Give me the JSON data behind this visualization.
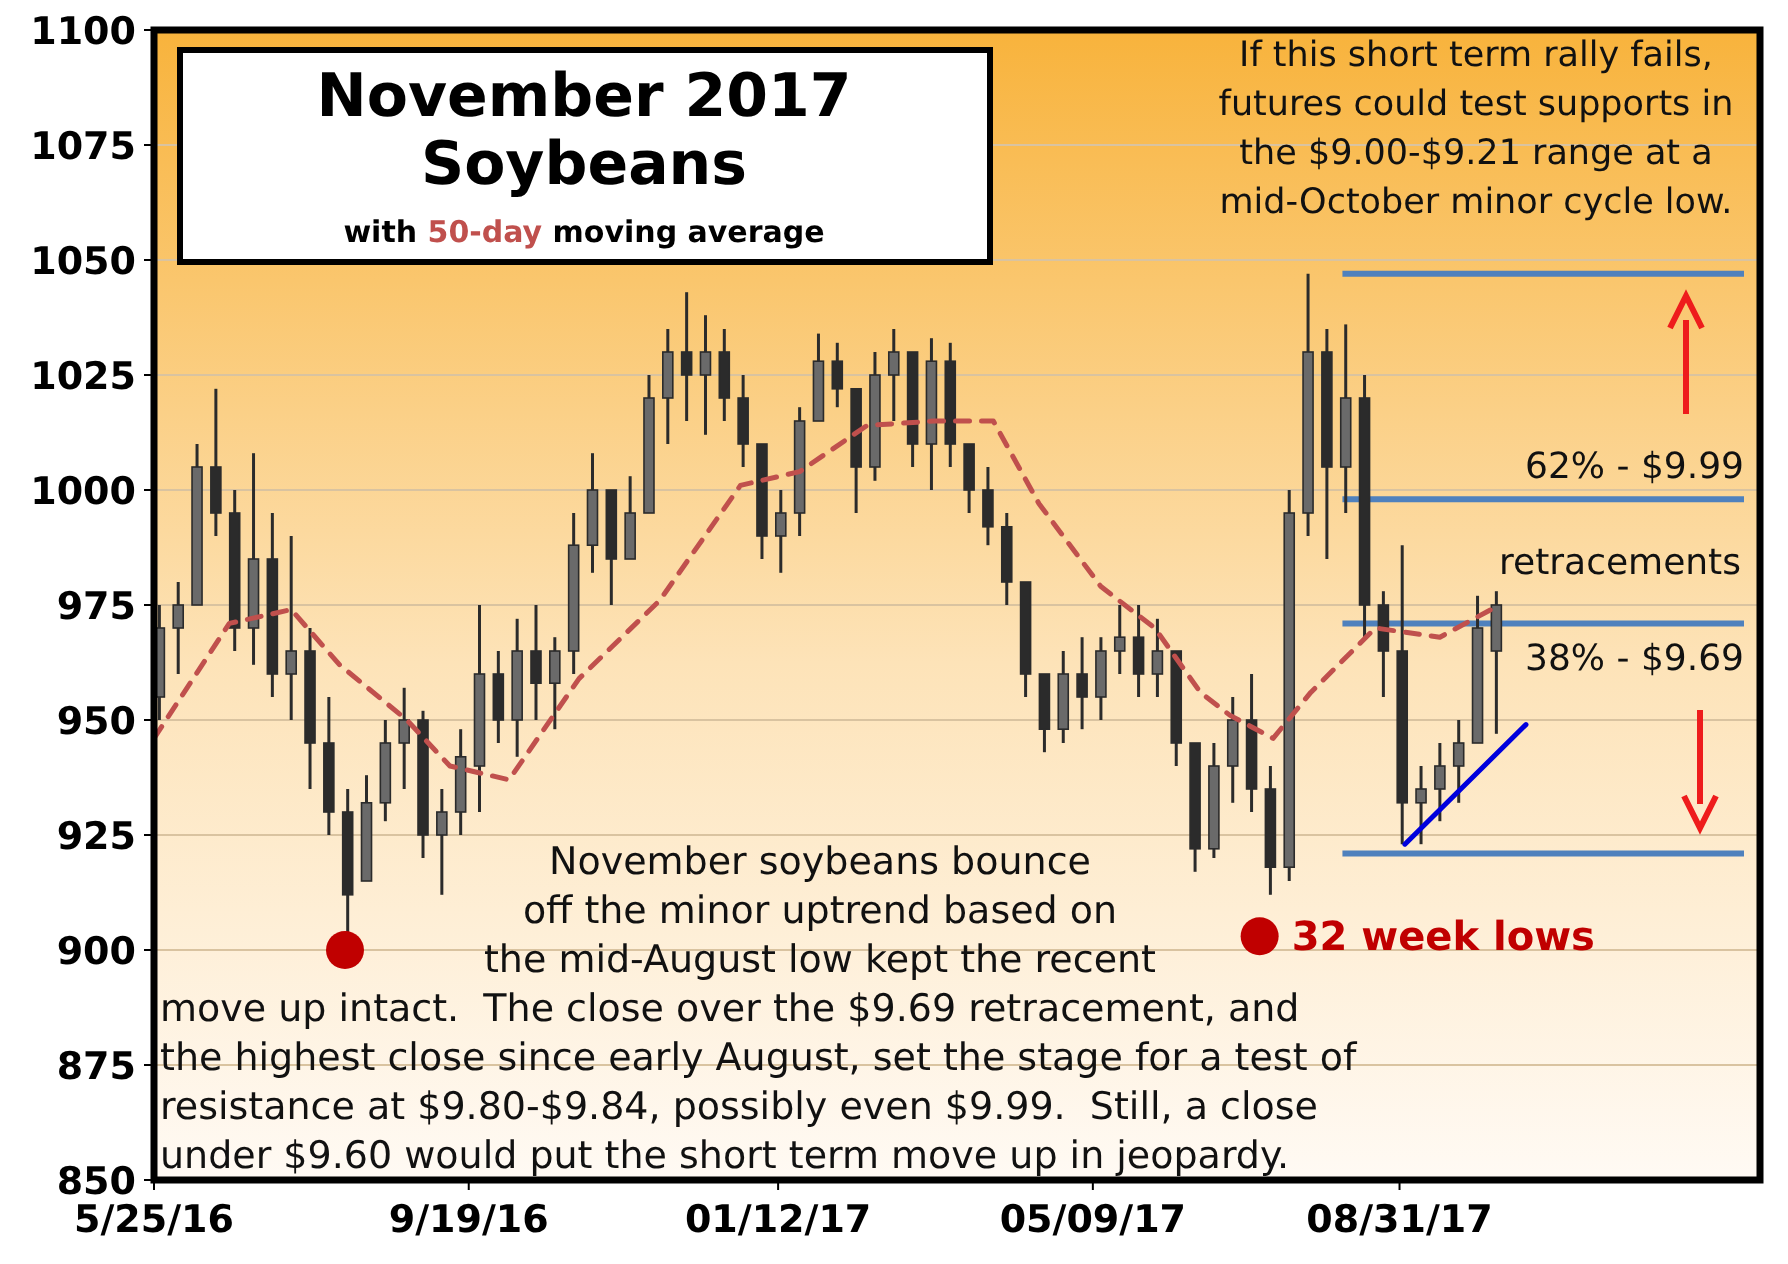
{
  "chart_data": {
    "type": "candlestick",
    "title": "November 2017 Soybeans",
    "subtitle": "with 50-day moving average",
    "xlim": [
      "2016-05-25",
      "2018-01-12"
    ],
    "xticks": [
      {
        "value": "2016-05-25",
        "label": "5/25/16"
      },
      {
        "value": "2016-09-19",
        "label": "9/19/16"
      },
      {
        "value": "2017-01-12",
        "label": "01/12/17"
      },
      {
        "value": "2017-05-09",
        "label": "05/09/17"
      },
      {
        "value": "2017-08-31",
        "label": "08/31/17"
      }
    ],
    "ylim": [
      850,
      1100
    ],
    "yticks": [
      850,
      875,
      900,
      925,
      950,
      975,
      1000,
      1025,
      1050,
      1075,
      1100
    ],
    "grid": "y",
    "x": [
      "2016-05-27",
      "2016-06-03",
      "2016-06-10",
      "2016-06-17",
      "2016-06-24",
      "2016-07-01",
      "2016-07-08",
      "2016-07-15",
      "2016-07-22",
      "2016-07-29",
      "2016-08-05",
      "2016-08-12",
      "2016-08-19",
      "2016-08-26",
      "2016-09-02",
      "2016-09-09",
      "2016-09-16",
      "2016-09-23",
      "2016-09-30",
      "2016-10-07",
      "2016-10-14",
      "2016-10-21",
      "2016-10-28",
      "2016-11-04",
      "2016-11-11",
      "2016-11-18",
      "2016-11-25",
      "2016-12-02",
      "2016-12-09",
      "2016-12-16",
      "2016-12-23",
      "2016-12-30",
      "2017-01-06",
      "2017-01-13",
      "2017-01-20",
      "2017-01-27",
      "2017-02-03",
      "2017-02-10",
      "2017-02-17",
      "2017-02-24",
      "2017-03-03",
      "2017-03-10",
      "2017-03-17",
      "2017-03-24",
      "2017-03-31",
      "2017-04-07",
      "2017-04-14",
      "2017-04-21",
      "2017-04-28",
      "2017-05-05",
      "2017-05-12",
      "2017-05-19",
      "2017-05-26",
      "2017-06-02",
      "2017-06-09",
      "2017-06-16",
      "2017-06-23",
      "2017-06-30",
      "2017-07-07",
      "2017-07-14",
      "2017-07-21",
      "2017-07-28",
      "2017-08-04",
      "2017-08-11",
      "2017-08-18",
      "2017-08-25",
      "2017-09-01",
      "2017-09-08",
      "2017-09-15",
      "2017-09-22",
      "2017-09-29",
      "2017-10-06"
    ],
    "ohlc": [
      [
        955,
        975,
        950,
        970
      ],
      [
        970,
        980,
        960,
        975
      ],
      [
        975,
        1010,
        975,
        1005
      ],
      [
        1005,
        1022,
        990,
        995
      ],
      [
        995,
        1000,
        965,
        970
      ],
      [
        970,
        1008,
        962,
        985
      ],
      [
        985,
        995,
        955,
        960
      ],
      [
        960,
        990,
        950,
        965
      ],
      [
        965,
        970,
        935,
        945
      ],
      [
        945,
        955,
        925,
        930
      ],
      [
        930,
        935,
        903,
        912
      ],
      [
        915,
        938,
        915,
        932
      ],
      [
        932,
        950,
        928,
        945
      ],
      [
        945,
        957,
        935,
        950
      ],
      [
        950,
        952,
        920,
        925
      ],
      [
        925,
        935,
        912,
        930
      ],
      [
        930,
        948,
        925,
        942
      ],
      [
        940,
        975,
        930,
        960
      ],
      [
        960,
        965,
        945,
        950
      ],
      [
        950,
        972,
        942,
        965
      ],
      [
        965,
        975,
        950,
        958
      ],
      [
        958,
        968,
        948,
        965
      ],
      [
        965,
        995,
        960,
        988
      ],
      [
        988,
        1008,
        982,
        1000
      ],
      [
        1000,
        1000,
        975,
        985
      ],
      [
        985,
        1003,
        985,
        995
      ],
      [
        995,
        1025,
        995,
        1020
      ],
      [
        1020,
        1035,
        1010,
        1030
      ],
      [
        1030,
        1043,
        1015,
        1025
      ],
      [
        1025,
        1038,
        1012,
        1030
      ],
      [
        1030,
        1035,
        1015,
        1020
      ],
      [
        1020,
        1025,
        1005,
        1010
      ],
      [
        1010,
        1010,
        985,
        990
      ],
      [
        990,
        1000,
        982,
        995
      ],
      [
        995,
        1018,
        990,
        1015
      ],
      [
        1015,
        1034,
        1015,
        1028
      ],
      [
        1028,
        1032,
        1018,
        1022
      ],
      [
        1022,
        1022,
        995,
        1005
      ],
      [
        1005,
        1030,
        1002,
        1025
      ],
      [
        1025,
        1035,
        1015,
        1030
      ],
      [
        1030,
        1030,
        1005,
        1010
      ],
      [
        1010,
        1033,
        1000,
        1028
      ],
      [
        1028,
        1032,
        1005,
        1010
      ],
      [
        1010,
        1010,
        995,
        1000
      ],
      [
        1000,
        1005,
        988,
        992
      ],
      [
        992,
        995,
        975,
        980
      ],
      [
        980,
        980,
        955,
        960
      ],
      [
        960,
        960,
        943,
        948
      ],
      [
        948,
        965,
        945,
        960
      ],
      [
        960,
        968,
        948,
        955
      ],
      [
        955,
        968,
        950,
        965
      ],
      [
        965,
        975,
        960,
        968
      ],
      [
        968,
        975,
        955,
        960
      ],
      [
        960,
        972,
        955,
        965
      ],
      [
        965,
        965,
        940,
        945
      ],
      [
        945,
        945,
        917,
        922
      ],
      [
        922,
        945,
        920,
        940
      ],
      [
        940,
        955,
        932,
        950
      ],
      [
        950,
        960,
        930,
        935
      ],
      [
        935,
        940,
        912,
        918
      ],
      [
        918,
        1000,
        915,
        995
      ],
      [
        995,
        1047,
        990,
        1030
      ],
      [
        1030,
        1035,
        985,
        1005
      ],
      [
        1005,
        1036,
        995,
        1020
      ],
      [
        1020,
        1025,
        968,
        975
      ],
      [
        975,
        978,
        955,
        965
      ],
      [
        965,
        988,
        923,
        932
      ],
      [
        932,
        940,
        923,
        935
      ],
      [
        935,
        945,
        928,
        940
      ],
      [
        940,
        950,
        932,
        945
      ],
      [
        945,
        977,
        945,
        970
      ],
      [
        965,
        978,
        947,
        975
      ]
    ],
    "series": [
      {
        "type": "line",
        "color": "#c0504d",
        "line_style": "dashed",
        "x": [
          "2016-05-25",
          "2016-06-22",
          "2016-07-15",
          "2016-08-02",
          "2016-08-27",
          "2016-09-12",
          "2016-10-04",
          "2016-10-30",
          "2016-11-29",
          "2016-12-29",
          "2017-01-20",
          "2017-02-14",
          "2017-03-11",
          "2017-04-02",
          "2017-04-19",
          "2017-05-12",
          "2017-06-01",
          "2017-06-18",
          "2017-06-29",
          "2017-07-15",
          "2017-07-29",
          "2017-08-22",
          "2017-09-15",
          "2017-10-04"
        ],
        "values": [
          946,
          971,
          974,
          962,
          950,
          940,
          937,
          959,
          976,
          1001,
          1004,
          1014,
          1015,
          1015,
          997,
          979,
          970,
          956,
          951,
          946,
          956,
          970,
          968,
          974
        ]
      },
      {
        "type": "line",
        "color": "#0000dd",
        "x": [
          "2017-09-02",
          "2017-10-17"
        ],
        "values": [
          923,
          949
        ]
      },
      {
        "type": "scatter",
        "color": "#c00000",
        "marker": "circle",
        "x": [
          "2016-08-04",
          "2017-07-10"
        ],
        "values": [
          900,
          903
        ]
      }
    ],
    "ref_lines": [
      {
        "axis": "y",
        "value": 1047,
        "color": "#4f81bd"
      },
      {
        "axis": "y",
        "value": 998,
        "color": "#4f81bd"
      },
      {
        "axis": "y",
        "value": 971,
        "color": "#4f81bd"
      },
      {
        "axis": "y",
        "value": 921,
        "color": "#4f81bd"
      }
    ],
    "annotations": [
      "If this short term rally fails, futures could test supports in the $9.00-$9.21 range at a mid-October minor cycle low.",
      "November soybeans bounce off the minor uptrend based on the mid-August low kept the recent move up intact.  The close over the $9.69 retracement, and the highest close since early August, set the stage for a test of resistance at $9.80-$9.84, possibly even $9.99.  Still, a close under $9.60 would put the short term move up in jeopardy.",
      "retracements",
      "62% - $9.99",
      "38% - $9.69",
      {
        "text": "32 week lows",
        "x": "2017-07-10",
        "y": 903
      }
    ]
  }
}
